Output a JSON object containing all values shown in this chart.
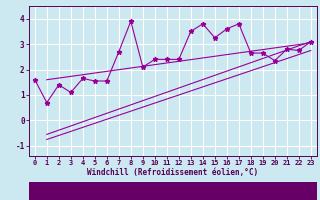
{
  "main_x": [
    0,
    1,
    2,
    3,
    4,
    5,
    6,
    7,
    8,
    9,
    10,
    11,
    12,
    13,
    14,
    15,
    16,
    17,
    18,
    19,
    20,
    21,
    22,
    23
  ],
  "main_y": [
    1.6,
    0.7,
    1.4,
    1.1,
    1.65,
    1.55,
    1.55,
    2.7,
    3.9,
    2.1,
    2.4,
    2.4,
    2.4,
    3.5,
    3.8,
    3.25,
    3.6,
    3.8,
    2.65,
    2.65,
    2.35,
    2.8,
    2.75,
    3.1
  ],
  "line1_x": [
    1,
    23
  ],
  "line1_y": [
    -0.55,
    3.1
  ],
  "line2_x": [
    1,
    23
  ],
  "line2_y": [
    -0.75,
    2.75
  ],
  "line3_x": [
    1,
    23
  ],
  "line3_y": [
    1.6,
    3.05
  ],
  "xlim": [
    -0.5,
    23.5
  ],
  "ylim": [
    -1.4,
    4.5
  ],
  "yticks": [
    -1,
    0,
    1,
    2,
    3,
    4
  ],
  "xticks": [
    0,
    1,
    2,
    3,
    4,
    5,
    6,
    7,
    8,
    9,
    10,
    11,
    12,
    13,
    14,
    15,
    16,
    17,
    18,
    19,
    20,
    21,
    22,
    23
  ],
  "xlabel": "Windchill (Refroidissement éolien,°C)",
  "color": "#990099",
  "bg_color": "#cce8f0",
  "grid_color": "#ffffff",
  "marker": "*",
  "markersize": 3.5,
  "linewidth": 0.8,
  "tick_fontsize": 5.0,
  "xlabel_fontsize": 5.5
}
